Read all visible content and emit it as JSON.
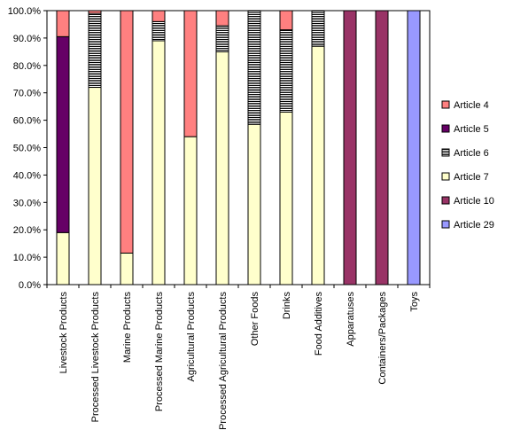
{
  "chart_data": {
    "type": "bar",
    "stacked": true,
    "title": "",
    "xlabel": "",
    "ylabel": "",
    "ylim": [
      0,
      100
    ],
    "yticks": [
      "0.0%",
      "10.0%",
      "20.0%",
      "30.0%",
      "40.0%",
      "50.0%",
      "60.0%",
      "70.0%",
      "80.0%",
      "90.0%",
      "100.0%"
    ],
    "grid": false,
    "legend_position": "right",
    "categories": [
      "Livestock Products",
      "Processed Livestock Products",
      "Marine Products",
      "Processed Marine Products",
      "Agricultural Products",
      "Processed Agricultural Products",
      "Other Foods",
      "Drinks",
      "Food Additives",
      "Apparatuses",
      "Containers/Packages",
      "Toys"
    ],
    "series": [
      {
        "name": "Article 7",
        "color": "#FFFFCC",
        "pattern": "solid",
        "values": [
          19,
          72,
          11.5,
          89,
          54,
          85,
          58.5,
          63,
          87,
          0,
          0,
          0
        ]
      },
      {
        "name": "Article 10",
        "color": "#993366",
        "pattern": "solid",
        "values": [
          0,
          0,
          0,
          0,
          0,
          0,
          0,
          0,
          0,
          100,
          100,
          0
        ]
      },
      {
        "name": "Article 29",
        "color": "#9999FF",
        "pattern": "solid",
        "values": [
          0,
          0,
          0,
          0,
          0,
          0,
          0,
          0,
          0,
          0,
          0,
          100
        ]
      },
      {
        "name": "Article 6",
        "color": "#FFFFFF",
        "pattern": "horizontal-lines",
        "values": [
          0,
          27,
          0,
          7,
          0,
          9.5,
          41.5,
          30,
          13,
          0,
          0,
          0
        ]
      },
      {
        "name": "Article 5",
        "color": "#660066",
        "pattern": "solid",
        "values": [
          71.5,
          0,
          0,
          0,
          0,
          0,
          0,
          0,
          0,
          0,
          0,
          0
        ]
      },
      {
        "name": "Article 4",
        "color": "#FF8080",
        "pattern": "solid",
        "values": [
          9.5,
          1,
          88.5,
          4,
          46,
          5.5,
          0,
          7,
          0,
          0,
          0,
          0
        ]
      }
    ],
    "legend_order": [
      "Article 4",
      "Article 5",
      "Article 6",
      "Article 7",
      "Article 10",
      "Article 29"
    ]
  }
}
